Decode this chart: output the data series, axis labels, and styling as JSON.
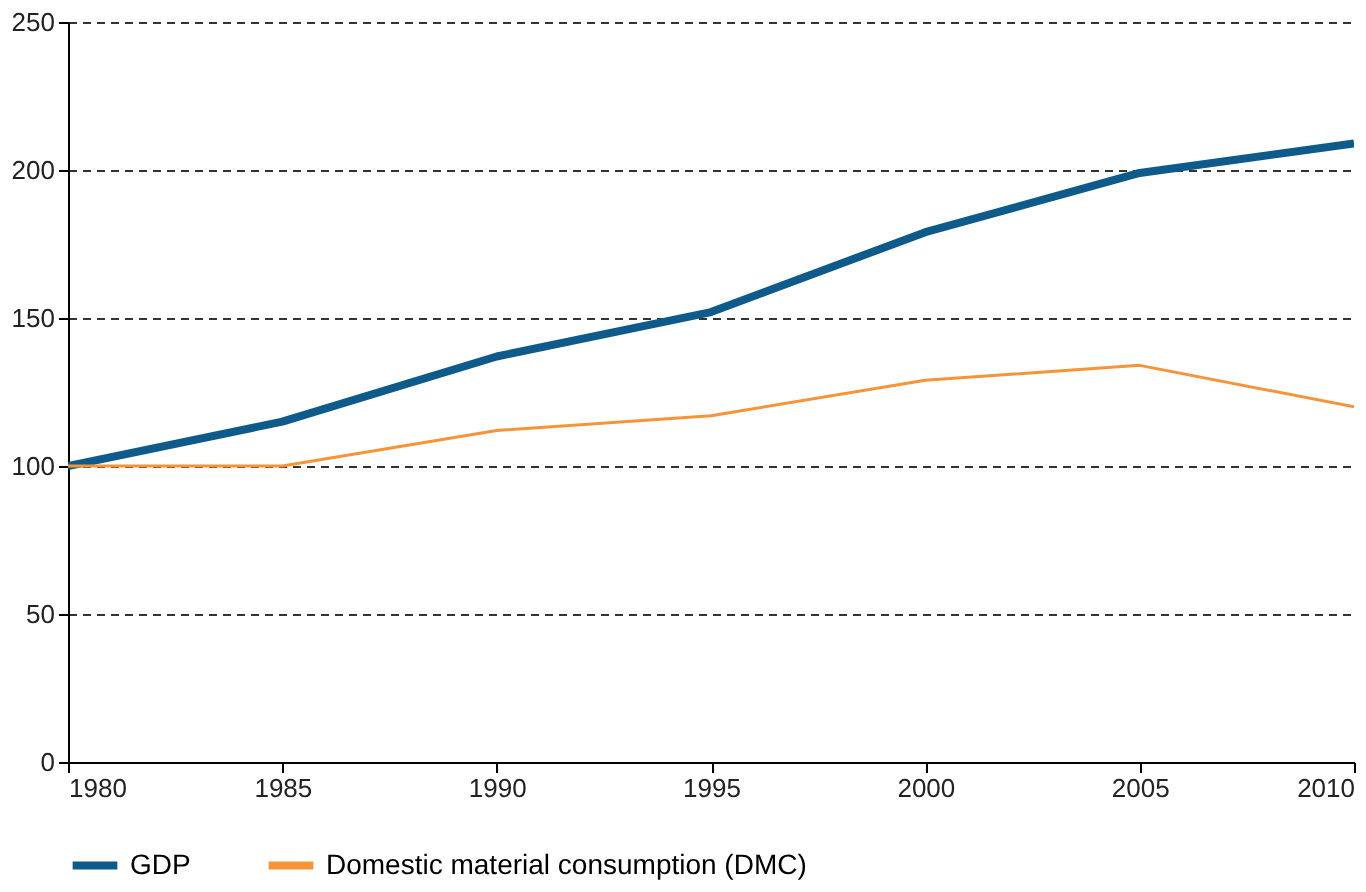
{
  "chart_data": {
    "type": "line",
    "x": [
      1980,
      1985,
      1990,
      1995,
      2000,
      2005,
      2010
    ],
    "series": [
      {
        "name": "GDP",
        "color": "#0e5a8a",
        "values": [
          100,
          115,
          137,
          152,
          179,
          199,
          209
        ]
      },
      {
        "name": "Domestic material consumption (DMC)",
        "color": "#f7943a",
        "values": [
          100,
          100,
          112,
          117,
          129,
          134,
          120
        ]
      }
    ],
    "xlim": [
      1980,
      2010
    ],
    "xticks": [
      1980,
      1985,
      1990,
      1995,
      2000,
      2005,
      2010
    ],
    "ylim": [
      0,
      250
    ],
    "yticks": [
      0,
      50,
      100,
      150,
      200,
      250
    ],
    "grid": "y",
    "legend": "bottom",
    "marker": "none",
    "line_style": "solid"
  }
}
